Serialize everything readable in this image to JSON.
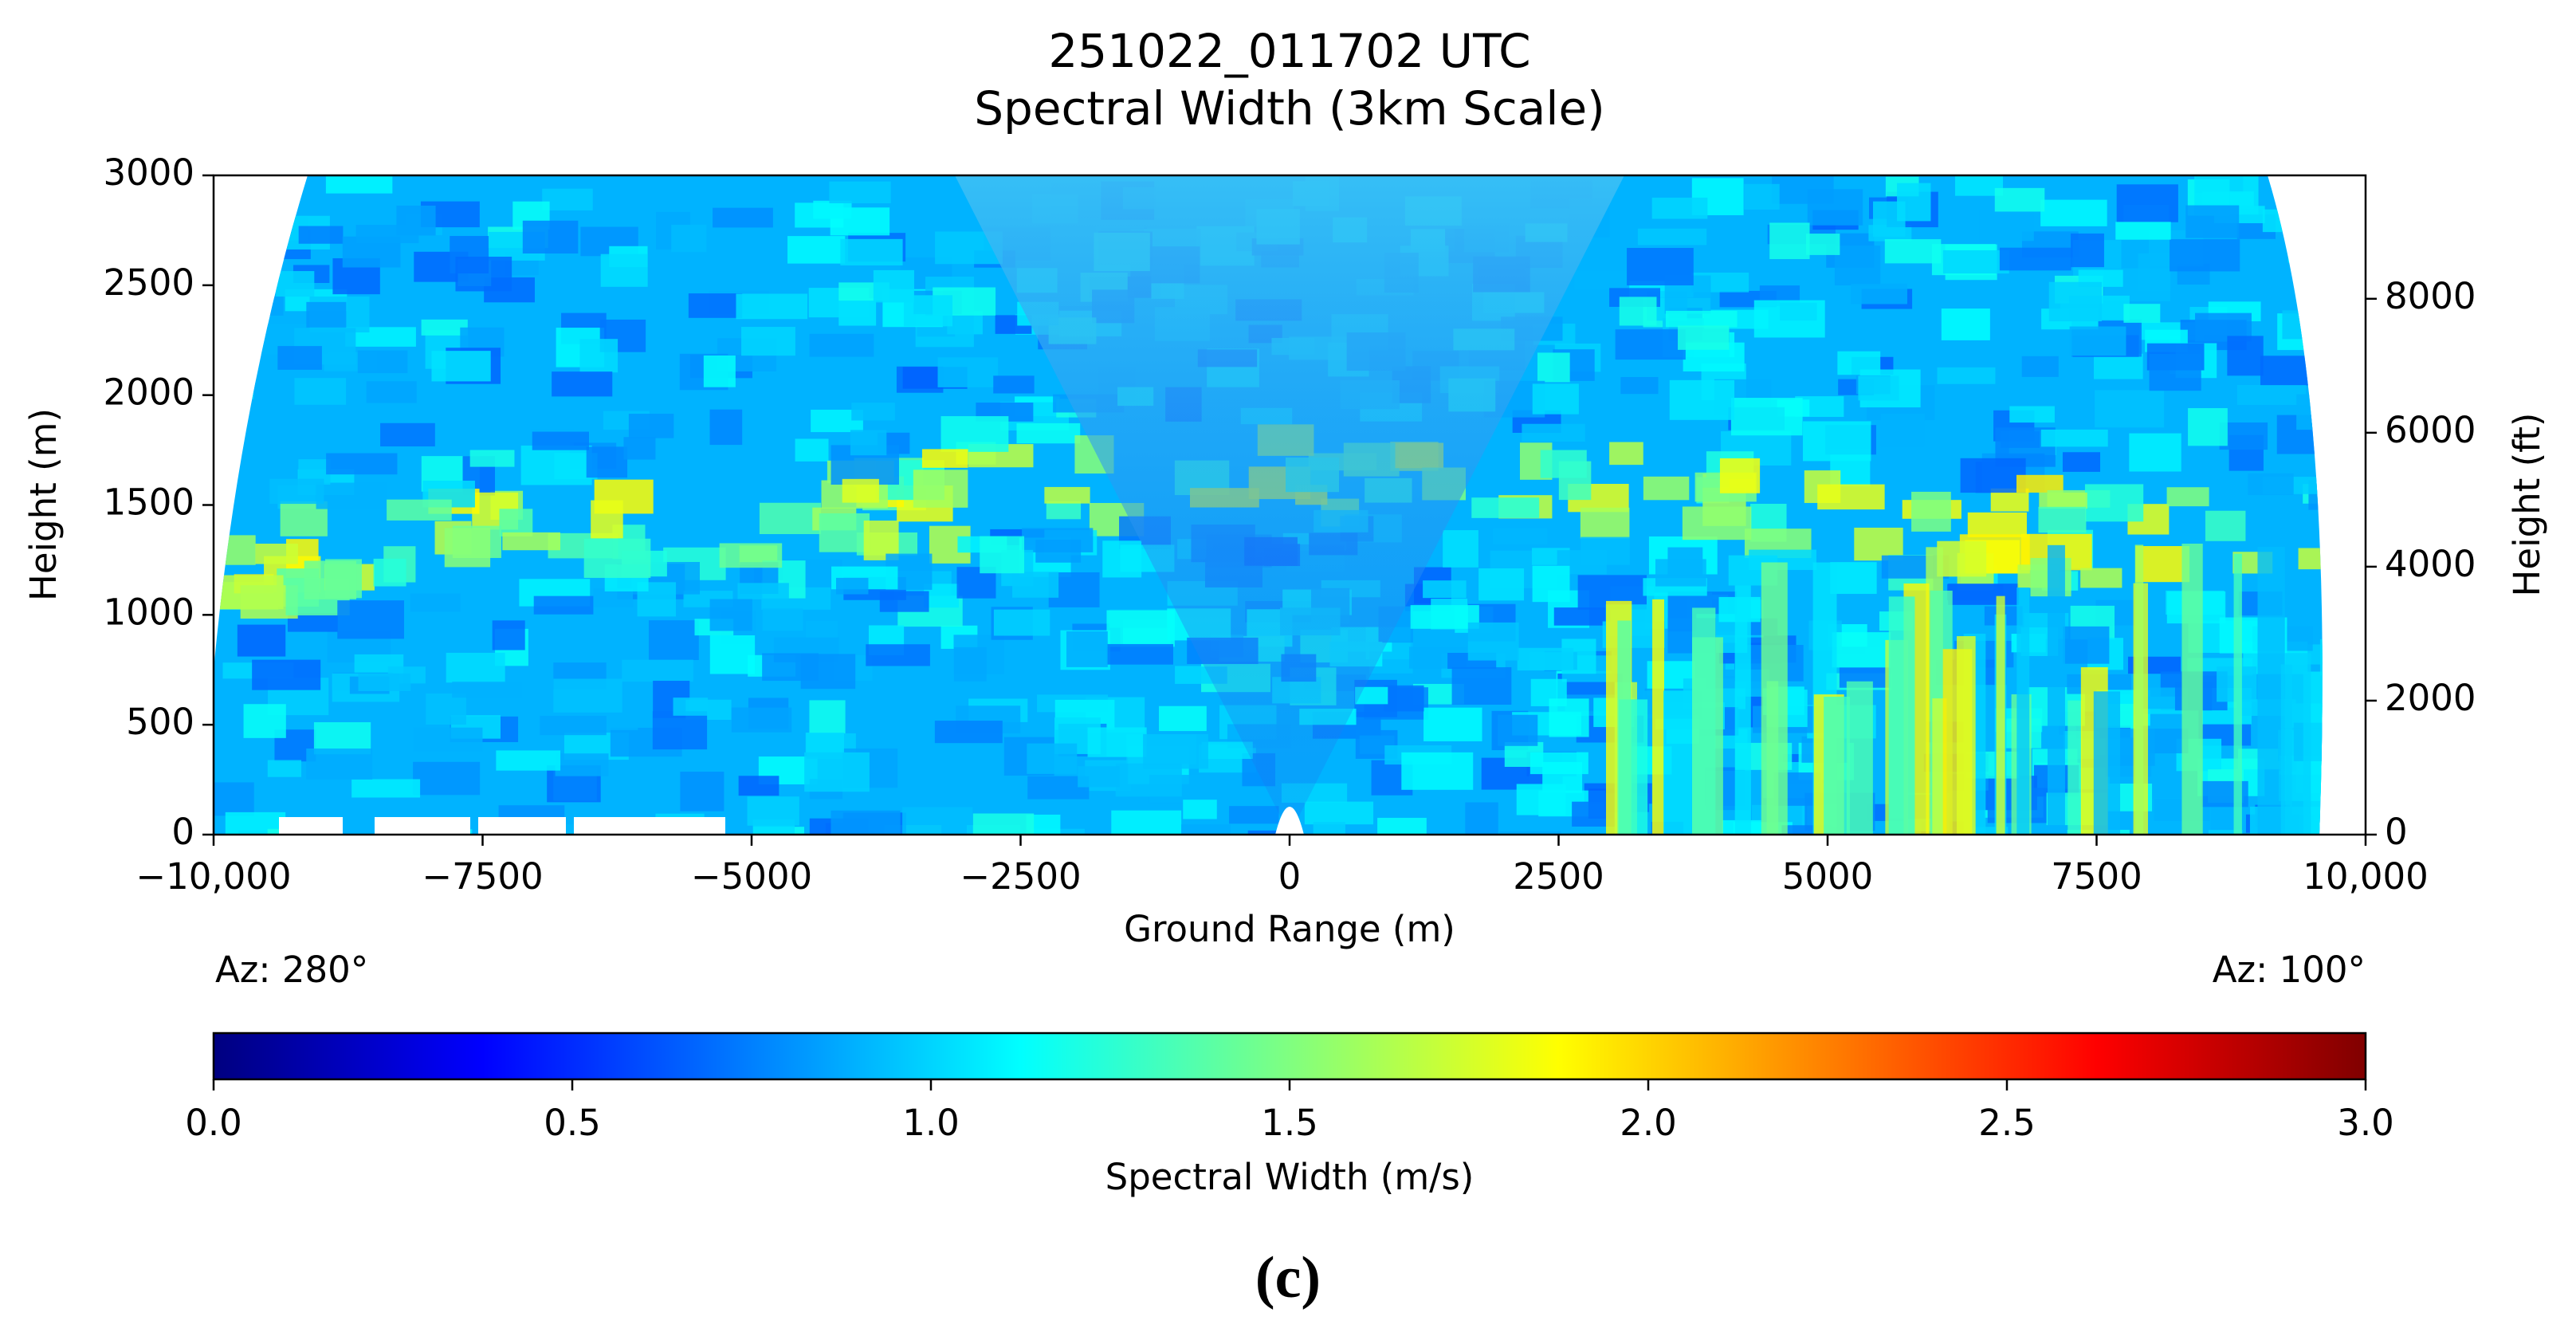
{
  "chart_data": {
    "type": "heatmap",
    "title": "251022_011702 UTC",
    "subtitle": "Spectral Width (3km Scale)",
    "xlabel": "Ground Range (m)",
    "ylabel": "Height (m)",
    "y2label": "Height (ft)",
    "xlim": [
      -10000,
      10000
    ],
    "xticks": [
      {
        "value": -10000,
        "label": "−10,000"
      },
      {
        "value": -7500,
        "label": "−7500"
      },
      {
        "value": -5000,
        "label": "−5000"
      },
      {
        "value": -2500,
        "label": "−2500"
      },
      0,
      2500,
      5000,
      7500,
      {
        "value": 10000,
        "label": "10,000"
      }
    ],
    "ylim": [
      0,
      3000
    ],
    "yticks": [
      0,
      500,
      1000,
      1500,
      2000,
      2500,
      3000
    ],
    "y2lim": [
      0,
      9842.5
    ],
    "y2ticks": [
      0,
      2000,
      4000,
      6000,
      8000
    ],
    "annotations": [
      "Az: 280°",
      "Az: 100°"
    ],
    "colorbar": {
      "label": "Spectral Width (m/s)",
      "lim": [
        0,
        3
      ],
      "colormap": "jet",
      "ticks": [
        {
          "value": 0,
          "label": "0.0"
        },
        0.5,
        {
          "value": 1,
          "label": "1.0"
        },
        1.5,
        {
          "value": 2,
          "label": "2.0"
        },
        2.5,
        {
          "value": 3,
          "label": "3.0"
        }
      ]
    }
  },
  "caption": "(c)"
}
